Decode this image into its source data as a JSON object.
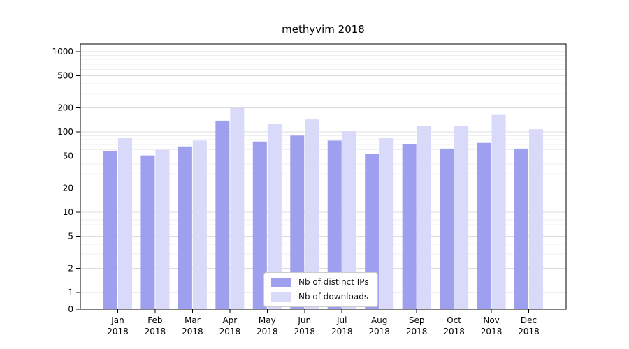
{
  "figure": {
    "background": "#ffffff",
    "axis_color": "#000000",
    "grid_major_color": "#dcdcdc",
    "grid_minor_color": "#efefef"
  },
  "chart_data": {
    "type": "bar",
    "title": "methyvim 2018",
    "categories": [
      "Jan",
      "Feb",
      "Mar",
      "Apr",
      "May",
      "Jun",
      "Jul",
      "Aug",
      "Sep",
      "Oct",
      "Nov",
      "Dec"
    ],
    "x_tick_year": "2018",
    "series": [
      {
        "name": "Nb of distinct IPs",
        "color": "#9f9ff0",
        "values": [
          58,
          51,
          66,
          138,
          76,
          90,
          78,
          53,
          70,
          62,
          73,
          62
        ]
      },
      {
        "name": "Nb of downloads",
        "color": "#d9d9fa",
        "values": [
          84,
          60,
          78,
          198,
          125,
          143,
          103,
          85,
          118,
          118,
          163,
          108
        ]
      }
    ],
    "yticks": [
      0,
      1,
      2,
      5,
      10,
      20,
      50,
      100,
      200,
      500,
      1000
    ],
    "yscale": "log",
    "ylim": [
      0,
      1000
    ],
    "grid": true,
    "legend_position": "lower-center"
  }
}
